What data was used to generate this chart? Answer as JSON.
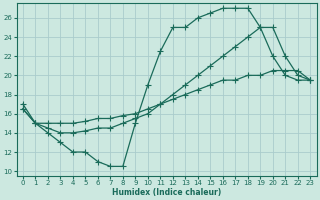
{
  "xlabel": "Humidex (Indice chaleur)",
  "bg_color": "#cce8e0",
  "grid_color": "#aacccc",
  "line_color": "#1a6b5a",
  "xlim": [
    -0.5,
    23.5
  ],
  "ylim": [
    9.5,
    27.5
  ],
  "xticks": [
    0,
    1,
    2,
    3,
    4,
    5,
    6,
    7,
    8,
    9,
    10,
    11,
    12,
    13,
    14,
    15,
    16,
    17,
    18,
    19,
    20,
    21,
    22,
    23
  ],
  "yticks": [
    10,
    12,
    14,
    16,
    18,
    20,
    22,
    24,
    26
  ],
  "line1_x": [
    0,
    1,
    2,
    3,
    4,
    5,
    6,
    7,
    8,
    9,
    10,
    11,
    12,
    13,
    14,
    15,
    16,
    17,
    18,
    19,
    20,
    21,
    22,
    23
  ],
  "line1_y": [
    17.0,
    15.0,
    14.0,
    13.0,
    12.0,
    12.0,
    11.0,
    10.5,
    10.5,
    15.0,
    19.0,
    22.5,
    25.0,
    25.0,
    26.0,
    26.5,
    27.0,
    27.0,
    27.0,
    25.0,
    22.0,
    20.0,
    19.5,
    19.5
  ],
  "line2_x": [
    0,
    1,
    2,
    3,
    4,
    5,
    6,
    7,
    8,
    9,
    10,
    11,
    12,
    13,
    14,
    15,
    16,
    17,
    18,
    19,
    20,
    21,
    22,
    23
  ],
  "line2_y": [
    16.5,
    15.0,
    14.5,
    14.0,
    14.0,
    14.2,
    14.5,
    14.5,
    15.0,
    15.5,
    16.0,
    17.0,
    18.0,
    19.0,
    20.0,
    21.0,
    22.0,
    23.0,
    24.0,
    25.0,
    25.0,
    22.0,
    20.0,
    19.5
  ],
  "line3_x": [
    0,
    1,
    2,
    3,
    4,
    5,
    6,
    7,
    8,
    9,
    10,
    11,
    12,
    13,
    14,
    15,
    16,
    17,
    18,
    19,
    20,
    21,
    22,
    23
  ],
  "line3_y": [
    16.5,
    15.0,
    15.0,
    15.0,
    15.0,
    15.2,
    15.5,
    15.5,
    15.8,
    16.0,
    16.5,
    17.0,
    17.5,
    18.0,
    18.5,
    19.0,
    19.5,
    19.5,
    20.0,
    20.0,
    20.5,
    20.5,
    20.5,
    19.5
  ]
}
